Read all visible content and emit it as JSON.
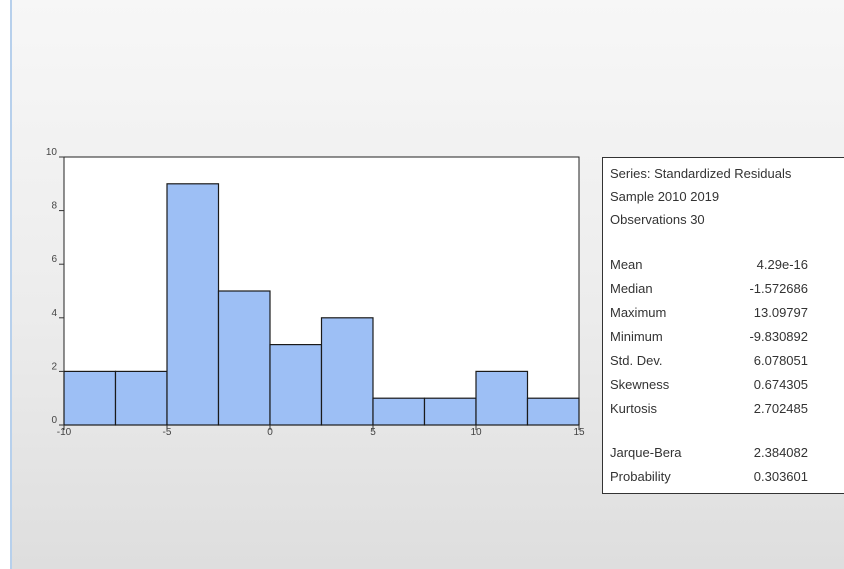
{
  "chart_data": {
    "type": "bar",
    "bin_edges": [
      -10,
      -7.5,
      -5,
      -2.5,
      0,
      2.5,
      5,
      7.5,
      10,
      12.5,
      15
    ],
    "values": [
      2,
      2,
      9,
      5,
      3,
      4,
      1,
      1,
      2,
      1
    ],
    "x_ticks": [
      "-10",
      "-5",
      "0",
      "5",
      "10",
      "15"
    ],
    "y_ticks": [
      "0",
      "2",
      "4",
      "6",
      "8",
      "10"
    ],
    "xlim": [
      -10,
      15
    ],
    "ylim": [
      0,
      10
    ],
    "bar_color": "#9dbff5",
    "title": "",
    "xlabel": "",
    "ylabel": ""
  },
  "stats": {
    "series_line": "Series: Standardized Residuals",
    "sample_line": "Sample 2010 2019",
    "obs_line": "Observations 30",
    "rows": [
      {
        "label": "Mean",
        "value": "4.29e-16"
      },
      {
        "label": "Median",
        "value": "-1.572686"
      },
      {
        "label": "Maximum",
        "value": "13.09797"
      },
      {
        "label": "Minimum",
        "value": "-9.830892"
      },
      {
        "label": "Std. Dev.",
        "value": "6.078051"
      },
      {
        "label": "Skewness",
        "value": "0.674305"
      },
      {
        "label": "Kurtosis",
        "value": "2.702485"
      },
      {
        "label": "Jarque-Bera",
        "value": "2.384082"
      },
      {
        "label": "Probability",
        "value": "0.303601"
      }
    ]
  }
}
